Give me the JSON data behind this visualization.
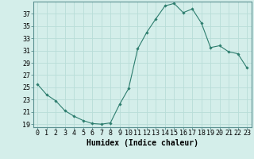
{
  "x": [
    0,
    1,
    2,
    3,
    4,
    5,
    6,
    7,
    8,
    9,
    10,
    11,
    12,
    13,
    14,
    15,
    16,
    17,
    18,
    19,
    20,
    21,
    22,
    23
  ],
  "y": [
    25.5,
    23.8,
    22.8,
    21.2,
    20.3,
    19.6,
    19.1,
    19.0,
    19.2,
    22.2,
    24.8,
    31.3,
    34.0,
    36.2,
    38.3,
    38.7,
    37.2,
    37.8,
    35.5,
    31.5,
    31.8,
    30.8,
    30.5,
    28.2
  ],
  "line_color": "#2d7d6e",
  "marker": "D",
  "marker_size": 1.8,
  "bg_color": "#d4eeea",
  "grid_color": "#b8ddd8",
  "xlabel": "Humidex (Indice chaleur)",
  "xlim": [
    -0.5,
    23.5
  ],
  "ylim": [
    18.5,
    39.0
  ],
  "yticks": [
    19,
    21,
    23,
    25,
    27,
    29,
    31,
    33,
    35,
    37
  ],
  "xticks": [
    0,
    1,
    2,
    3,
    4,
    5,
    6,
    7,
    8,
    9,
    10,
    11,
    12,
    13,
    14,
    15,
    16,
    17,
    18,
    19,
    20,
    21,
    22,
    23
  ],
  "xlabel_fontsize": 7,
  "tick_fontsize": 6,
  "linewidth": 0.8
}
